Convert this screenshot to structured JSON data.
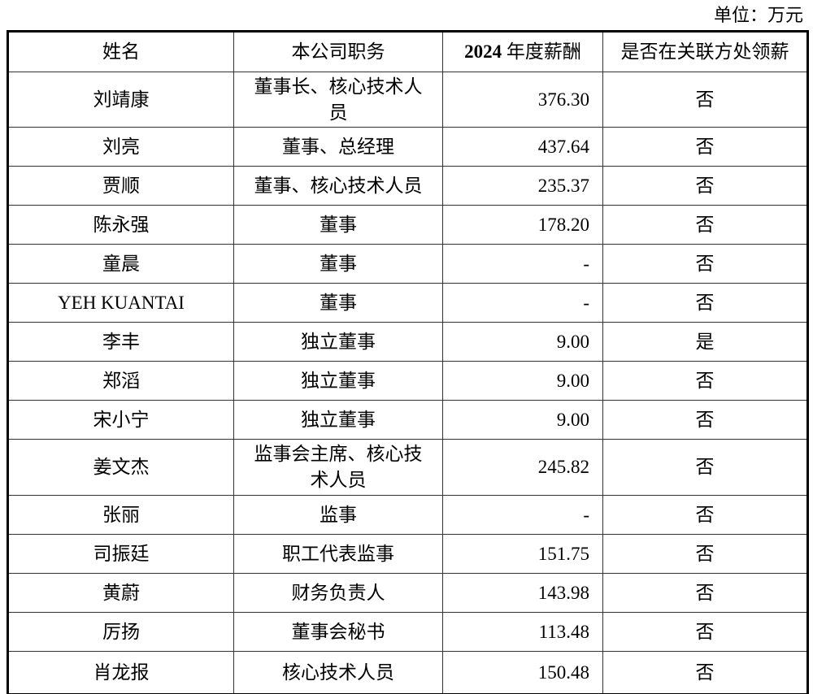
{
  "unit_label": "单位：万元",
  "table": {
    "header": {
      "name": "姓名",
      "position": "本公司职务",
      "salary_year": "2024",
      "salary_label": "年度薪酬",
      "related": "是否在关联方处领薪"
    },
    "rows": [
      {
        "name": "刘靖康",
        "position": "董事长、核心技术人员",
        "salary": "376.30",
        "related": "否"
      },
      {
        "name": "刘亮",
        "position": "董事、总经理",
        "salary": "437.64",
        "related": "否"
      },
      {
        "name": "贾顺",
        "position": "董事、核心技术人员",
        "salary": "235.37",
        "related": "否"
      },
      {
        "name": "陈永强",
        "position": "董事",
        "salary": "178.20",
        "related": "否"
      },
      {
        "name": "童晨",
        "position": "董事",
        "salary": "-",
        "related": "否"
      },
      {
        "name": "YEH KUANTAI",
        "position": "董事",
        "salary": "-",
        "related": "否"
      },
      {
        "name": "李丰",
        "position": "独立董事",
        "salary": "9.00",
        "related": "是"
      },
      {
        "name": "郑滔",
        "position": "独立董事",
        "salary": "9.00",
        "related": "否"
      },
      {
        "name": "宋小宁",
        "position": "独立董事",
        "salary": "9.00",
        "related": "否"
      },
      {
        "name": "姜文杰",
        "position": "监事会主席、核心技术人员",
        "salary": "245.82",
        "related": "否"
      },
      {
        "name": "张丽",
        "position": "监事",
        "salary": "-",
        "related": "否"
      },
      {
        "name": "司振廷",
        "position": "职工代表监事",
        "salary": "151.75",
        "related": "否"
      },
      {
        "name": "黄蔚",
        "position": "财务负责人",
        "salary": "143.98",
        "related": "否"
      },
      {
        "name": "厉扬",
        "position": "董事会秘书",
        "salary": "113.48",
        "related": "否"
      },
      {
        "name": "肖龙报",
        "position": "核心技术人员",
        "salary": "150.48",
        "related": "否"
      }
    ]
  }
}
